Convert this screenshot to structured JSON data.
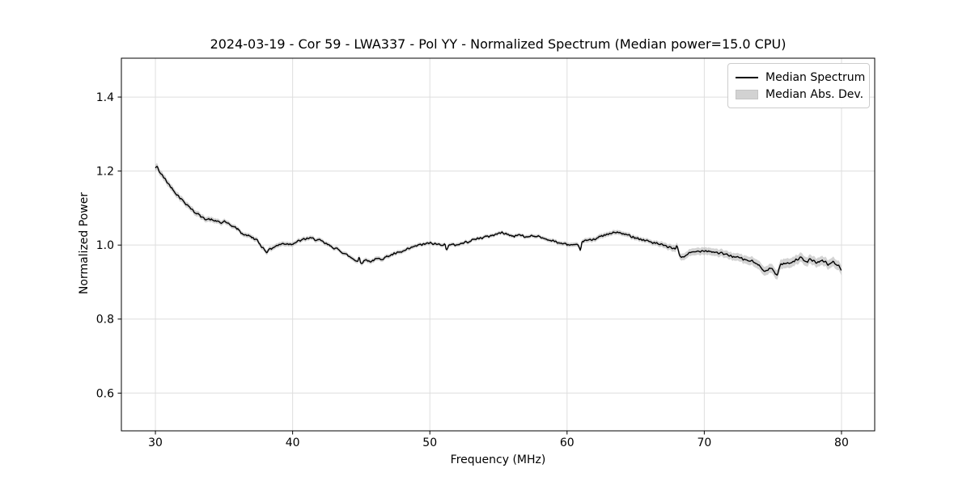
{
  "chart_data": {
    "type": "line",
    "title": "2024-03-19 - Cor 59 - LWA337 - Pol YY - Normalized Spectrum (Median power=15.0 CPU)",
    "xlabel": "Frequency (MHz)",
    "ylabel": "Normalized Power",
    "xlim": [
      27.52,
      82.42
    ],
    "ylim": [
      0.498,
      1.505
    ],
    "xticks": [
      30,
      40,
      50,
      60,
      70,
      80
    ],
    "xtick_labels": [
      "30",
      "40",
      "50",
      "60",
      "70",
      "80"
    ],
    "yticks": [
      0.6,
      0.8,
      1.0,
      1.2,
      1.4
    ],
    "ytick_labels": [
      "0.6",
      "0.8",
      "1.0",
      "1.2",
      "1.4"
    ],
    "grid": true,
    "legend_position": "upper right",
    "series": [
      {
        "name": "Median Spectrum",
        "type": "line",
        "color": "#000000",
        "x": [
          30.0,
          30.1,
          30.3,
          30.6,
          31.0,
          31.5,
          32.0,
          32.5,
          32.8,
          33.1,
          33.3,
          33.7,
          34.1,
          34.5,
          34.8,
          35.05,
          35.2,
          35.6,
          36.1,
          36.25,
          36.6,
          37.0,
          37.4,
          37.7,
          38.1,
          38.4,
          38.8,
          39.3,
          39.9,
          40.4,
          40.8,
          41.2,
          41.6,
          42.0,
          42.5,
          43.0,
          43.5,
          44.0,
          44.4,
          44.75,
          44.85,
          44.95,
          45.3,
          45.7,
          46.1,
          46.6,
          47.0,
          47.5,
          48.0,
          48.5,
          49.0,
          49.5,
          50.0,
          50.5,
          51.1,
          51.2,
          51.35,
          51.8,
          52.3,
          52.8,
          53.3,
          53.8,
          54.3,
          54.8,
          55.3,
          55.7,
          56.1,
          56.5,
          57.0,
          57.4,
          57.9,
          58.4,
          58.9,
          59.4,
          59.9,
          60.4,
          60.8,
          60.95,
          61.1,
          61.6,
          62.1,
          62.6,
          63.1,
          63.5,
          63.9,
          64.4,
          64.9,
          65.4,
          65.9,
          66.4,
          66.9,
          67.4,
          67.9,
          68.0,
          68.2,
          68.45,
          68.8,
          69.4,
          70.0,
          70.6,
          71.2,
          71.8,
          72.4,
          73.0,
          73.5,
          74.1,
          74.45,
          74.9,
          75.3,
          75.55,
          76.1,
          76.6,
          77.0,
          77.4,
          77.8,
          78.2,
          78.6,
          79.0,
          79.4,
          79.8,
          80.0
        ],
        "y": [
          1.208,
          1.213,
          1.198,
          1.183,
          1.163,
          1.14,
          1.12,
          1.103,
          1.09,
          1.085,
          1.076,
          1.071,
          1.068,
          1.064,
          1.059,
          1.066,
          1.058,
          1.052,
          1.041,
          1.031,
          1.028,
          1.022,
          1.013,
          0.998,
          0.982,
          0.99,
          0.998,
          1.004,
          1.003,
          1.01,
          1.015,
          1.019,
          1.016,
          1.012,
          1.002,
          0.993,
          0.984,
          0.972,
          0.963,
          0.956,
          0.97,
          0.951,
          0.96,
          0.956,
          0.962,
          0.964,
          0.971,
          0.977,
          0.982,
          0.99,
          0.998,
          1.002,
          1.005,
          1.002,
          1.002,
          0.984,
          1.001,
          1.0,
          1.004,
          1.01,
          1.016,
          1.02,
          1.024,
          1.029,
          1.034,
          1.028,
          1.024,
          1.028,
          1.021,
          1.026,
          1.023,
          1.017,
          1.012,
          1.006,
          1.002,
          1.0,
          0.998,
          0.985,
          1.01,
          1.013,
          1.018,
          1.025,
          1.03,
          1.035,
          1.032,
          1.027,
          1.022,
          1.015,
          1.011,
          1.005,
          1.0,
          0.995,
          0.988,
          1.0,
          0.972,
          0.966,
          0.977,
          0.982,
          0.986,
          0.982,
          0.978,
          0.972,
          0.967,
          0.96,
          0.956,
          0.942,
          0.929,
          0.938,
          0.918,
          0.948,
          0.951,
          0.958,
          0.966,
          0.954,
          0.962,
          0.951,
          0.96,
          0.948,
          0.953,
          0.945,
          0.929
        ]
      },
      {
        "name": "Median Abs. Dev.",
        "type": "band",
        "color": "#9e9e9e",
        "opacity": 0.45,
        "x": [
          30,
          32,
          34,
          36,
          38,
          40,
          43,
          46,
          50,
          54,
          58,
          61,
          63,
          66,
          68,
          70,
          72,
          74,
          76,
          78,
          80
        ],
        "halfwidth": [
          0.009,
          0.008,
          0.007,
          0.006,
          0.0065,
          0.006,
          0.0055,
          0.006,
          0.005,
          0.005,
          0.005,
          0.006,
          0.0065,
          0.006,
          0.009,
          0.01,
          0.01,
          0.012,
          0.013,
          0.012,
          0.013
        ]
      }
    ],
    "render": {
      "noise_amplitude": 0.0038,
      "sample_step_mhz": 0.06,
      "seed": 42,
      "line_width": 1.4,
      "grid_color": "#dedede",
      "spine_color": "#000000",
      "tick_font_px": 14
    }
  }
}
